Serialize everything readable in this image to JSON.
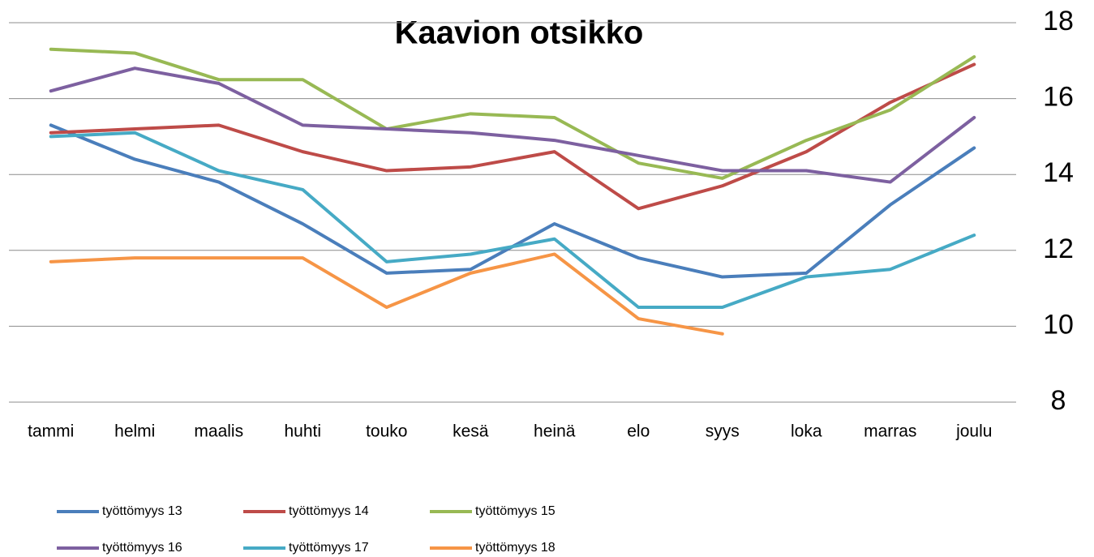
{
  "chart_data": {
    "type": "line",
    "title": "Kaavion otsikko",
    "categories": [
      "tammi",
      "helmi",
      "maalis",
      "huhti",
      "touko",
      "kesä",
      "heinä",
      "elo",
      "syys",
      "loka",
      "marras",
      "joulu"
    ],
    "series": [
      {
        "name": "työttömyys 13",
        "color": "#4a7ebb",
        "values": [
          15.3,
          14.4,
          13.8,
          12.7,
          11.4,
          11.5,
          12.7,
          11.8,
          11.3,
          11.4,
          13.2,
          14.7
        ]
      },
      {
        "name": "työttömyys 14",
        "color": "#be4b48",
        "values": [
          15.1,
          15.2,
          15.3,
          14.6,
          14.1,
          14.2,
          14.6,
          13.1,
          13.7,
          14.6,
          15.9,
          16.9
        ]
      },
      {
        "name": "työttömyys 15",
        "color": "#98b954",
        "values": [
          17.3,
          17.2,
          16.5,
          16.5,
          15.2,
          15.6,
          15.5,
          14.3,
          13.9,
          14.9,
          15.7,
          17.1
        ]
      },
      {
        "name": "työttömyys 16",
        "color": "#7d60a0",
        "values": [
          16.2,
          16.8,
          16.4,
          15.3,
          15.2,
          15.1,
          14.9,
          14.5,
          14.1,
          14.1,
          13.8,
          15.5
        ]
      },
      {
        "name": "työttömyys 17",
        "color": "#46aac5",
        "values": [
          15.0,
          15.1,
          14.1,
          13.6,
          11.7,
          11.9,
          12.3,
          10.5,
          10.5,
          11.3,
          11.5,
          12.4
        ]
      },
      {
        "name": "työttömyys 18",
        "color": "#f69546",
        "values": [
          11.7,
          11.8,
          11.8,
          11.8,
          10.5,
          11.4,
          11.9,
          10.2,
          9.8,
          null,
          null,
          null
        ]
      }
    ],
    "ylim": [
      8,
      18
    ],
    "yticks": [
      8,
      10,
      12,
      14,
      16,
      18
    ],
    "grid": true,
    "legend": "bottom"
  }
}
